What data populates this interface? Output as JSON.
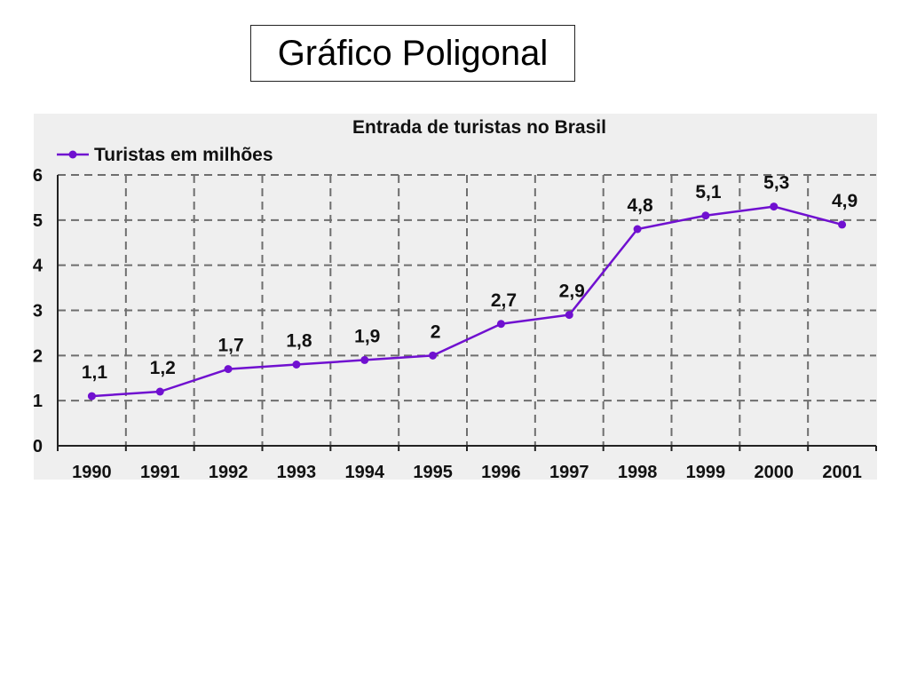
{
  "slide": {
    "title": "Gráfico Poligonal"
  },
  "colors": {
    "series": "#7010d0",
    "grid": "#6e6e6e",
    "plot_background": "#efefef"
  },
  "chart_data": {
    "type": "line",
    "title": "Entrada de turistas no Brasil",
    "xlabel": "",
    "ylabel": "",
    "categories": [
      "1990",
      "1991",
      "1992",
      "1993",
      "1994",
      "1995",
      "1996",
      "1997",
      "1998",
      "1999",
      "2000",
      "2001"
    ],
    "series": [
      {
        "name": "Turistas em milhões",
        "values": [
          1.1,
          1.2,
          1.7,
          1.8,
          1.9,
          2,
          2.7,
          2.9,
          4.8,
          5.1,
          5.3,
          4.9
        ],
        "labels": [
          "1,1",
          "1,2",
          "1,7",
          "1,8",
          "1,9",
          "2",
          "2,7",
          "2,9",
          "4,8",
          "5,1",
          "5,3",
          "4,9"
        ]
      }
    ],
    "ylim": [
      0,
      6
    ],
    "yticks": [
      0,
      1,
      2,
      3,
      4,
      5,
      6
    ],
    "grid": true,
    "grid_style": "dashed",
    "legend_position": "top-left"
  }
}
